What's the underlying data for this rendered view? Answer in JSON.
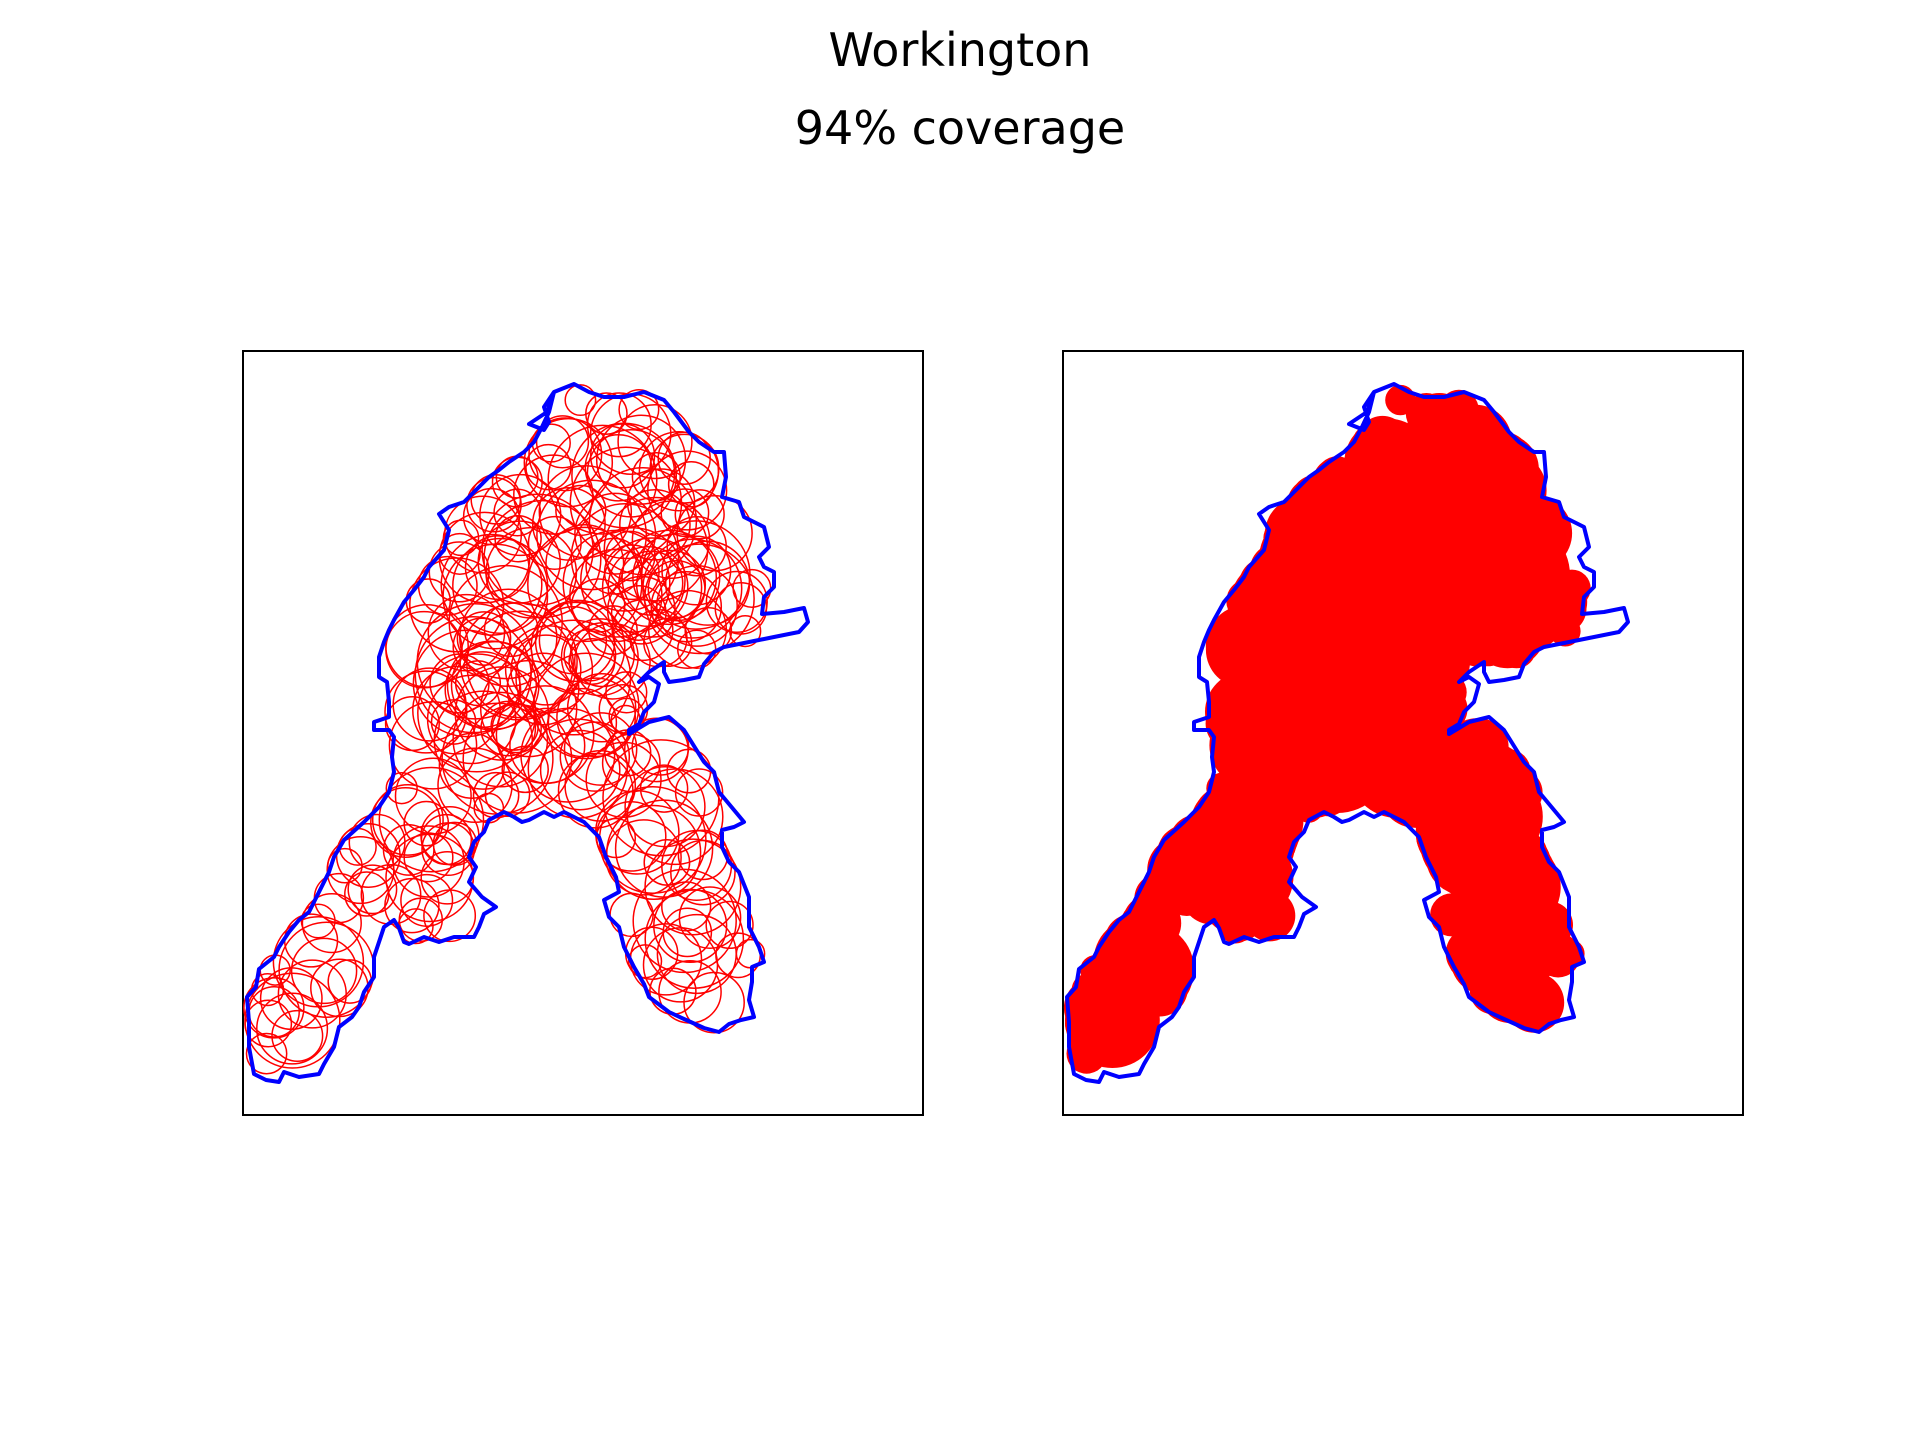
{
  "figure": {
    "title": "Workington",
    "subtitle": "94% coverage"
  },
  "chart_data": [
    {
      "type": "map",
      "panel": "left",
      "region": "Workington",
      "boundary_color": "#0000ff",
      "circle_color": "#ff0000",
      "style": "circle outlines",
      "axes": "no ticks",
      "grid": false
    },
    {
      "type": "map",
      "panel": "right",
      "region": "Workington",
      "boundary_color": "#0000ff",
      "fill_color": "#ff0000",
      "style": "filled coverage",
      "coverage_percent": 94,
      "axes": "no ticks",
      "grid": false
    }
  ]
}
